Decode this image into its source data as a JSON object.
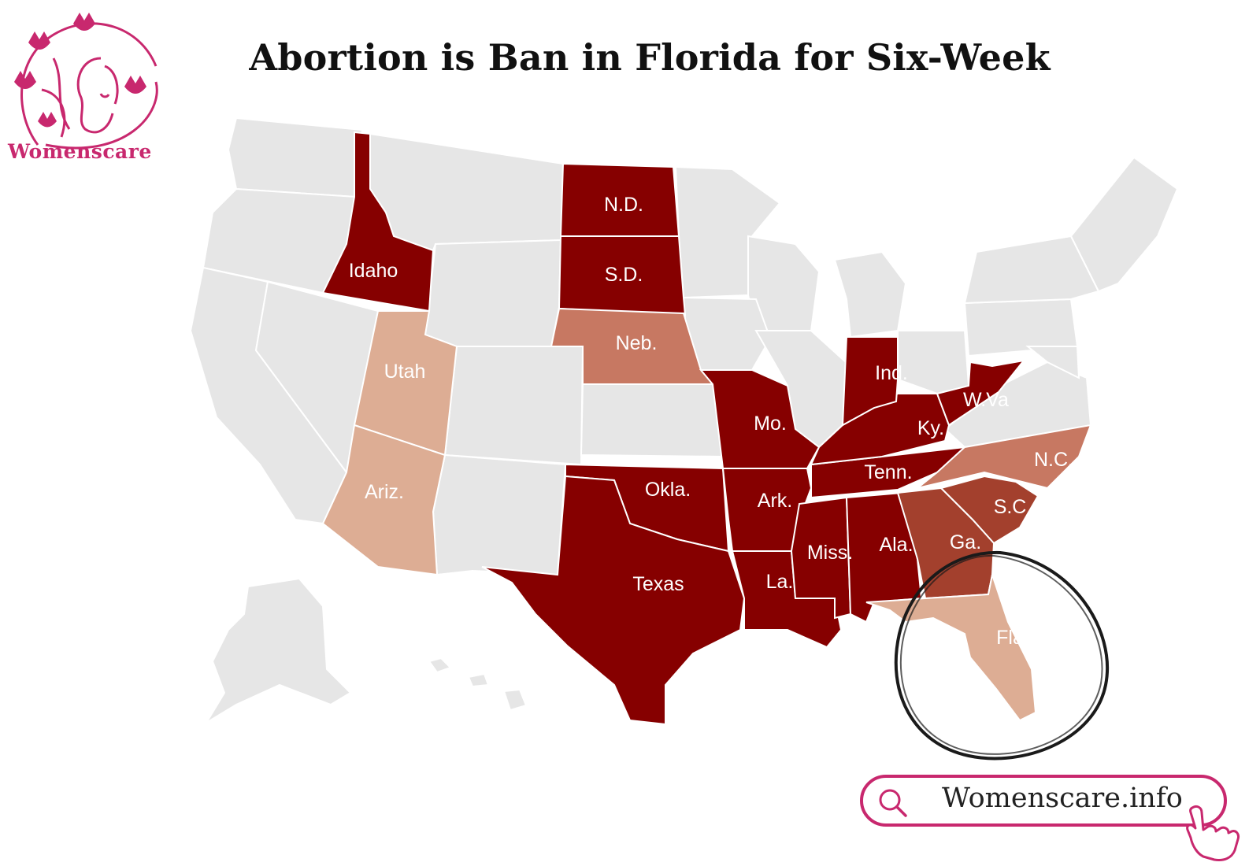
{
  "title": "Abortion is Ban in Florida for Six-Week",
  "brand": {
    "name": "Womenscare",
    "website": "Womenscare.info",
    "logo_icon": "flower-woman-logo",
    "accent_color": "#c8286e"
  },
  "legend_colors": {
    "full_ban": "#860000",
    "early_ban": "#a3402d",
    "six_week_ban": "#c77862",
    "partial_ban": "#ddad94",
    "no_ban": "#e6e6e6"
  },
  "states": [
    {
      "id": "idaho",
      "label": "Idaho",
      "category": "full_ban"
    },
    {
      "id": "north-dakota",
      "label": "N.D.",
      "category": "full_ban"
    },
    {
      "id": "south-dakota",
      "label": "S.D.",
      "category": "full_ban"
    },
    {
      "id": "nebraska",
      "label": "Neb.",
      "category": "six_week_ban"
    },
    {
      "id": "utah",
      "label": "Utah",
      "category": "partial_ban"
    },
    {
      "id": "arizona",
      "label": "Ariz.",
      "category": "partial_ban"
    },
    {
      "id": "oklahoma",
      "label": "Okla.",
      "category": "full_ban"
    },
    {
      "id": "texas",
      "label": "Texas",
      "category": "full_ban"
    },
    {
      "id": "missouri",
      "label": "Mo.",
      "category": "full_ban"
    },
    {
      "id": "arkansas",
      "label": "Ark.",
      "category": "full_ban"
    },
    {
      "id": "louisiana",
      "label": "La.",
      "category": "full_ban"
    },
    {
      "id": "mississippi",
      "label": "Miss.",
      "category": "full_ban"
    },
    {
      "id": "alabama",
      "label": "Ala.",
      "category": "full_ban"
    },
    {
      "id": "tennessee",
      "label": "Tenn.",
      "category": "full_ban"
    },
    {
      "id": "kentucky",
      "label": "Ky.",
      "category": "full_ban"
    },
    {
      "id": "indiana",
      "label": "Ind.",
      "category": "full_ban"
    },
    {
      "id": "west-virginia",
      "label": "W.Va",
      "category": "full_ban"
    },
    {
      "id": "north-carolina",
      "label": "N.C.",
      "category": "six_week_ban"
    },
    {
      "id": "south-carolina",
      "label": "S.C.",
      "category": "early_ban"
    },
    {
      "id": "georgia",
      "label": "Ga.",
      "category": "early_ban"
    },
    {
      "id": "florida",
      "label": "Fla.",
      "category": "partial_ban"
    }
  ],
  "highlight": {
    "state": "florida",
    "shape": "hand-drawn-circle",
    "color": "#1a1a1a"
  }
}
